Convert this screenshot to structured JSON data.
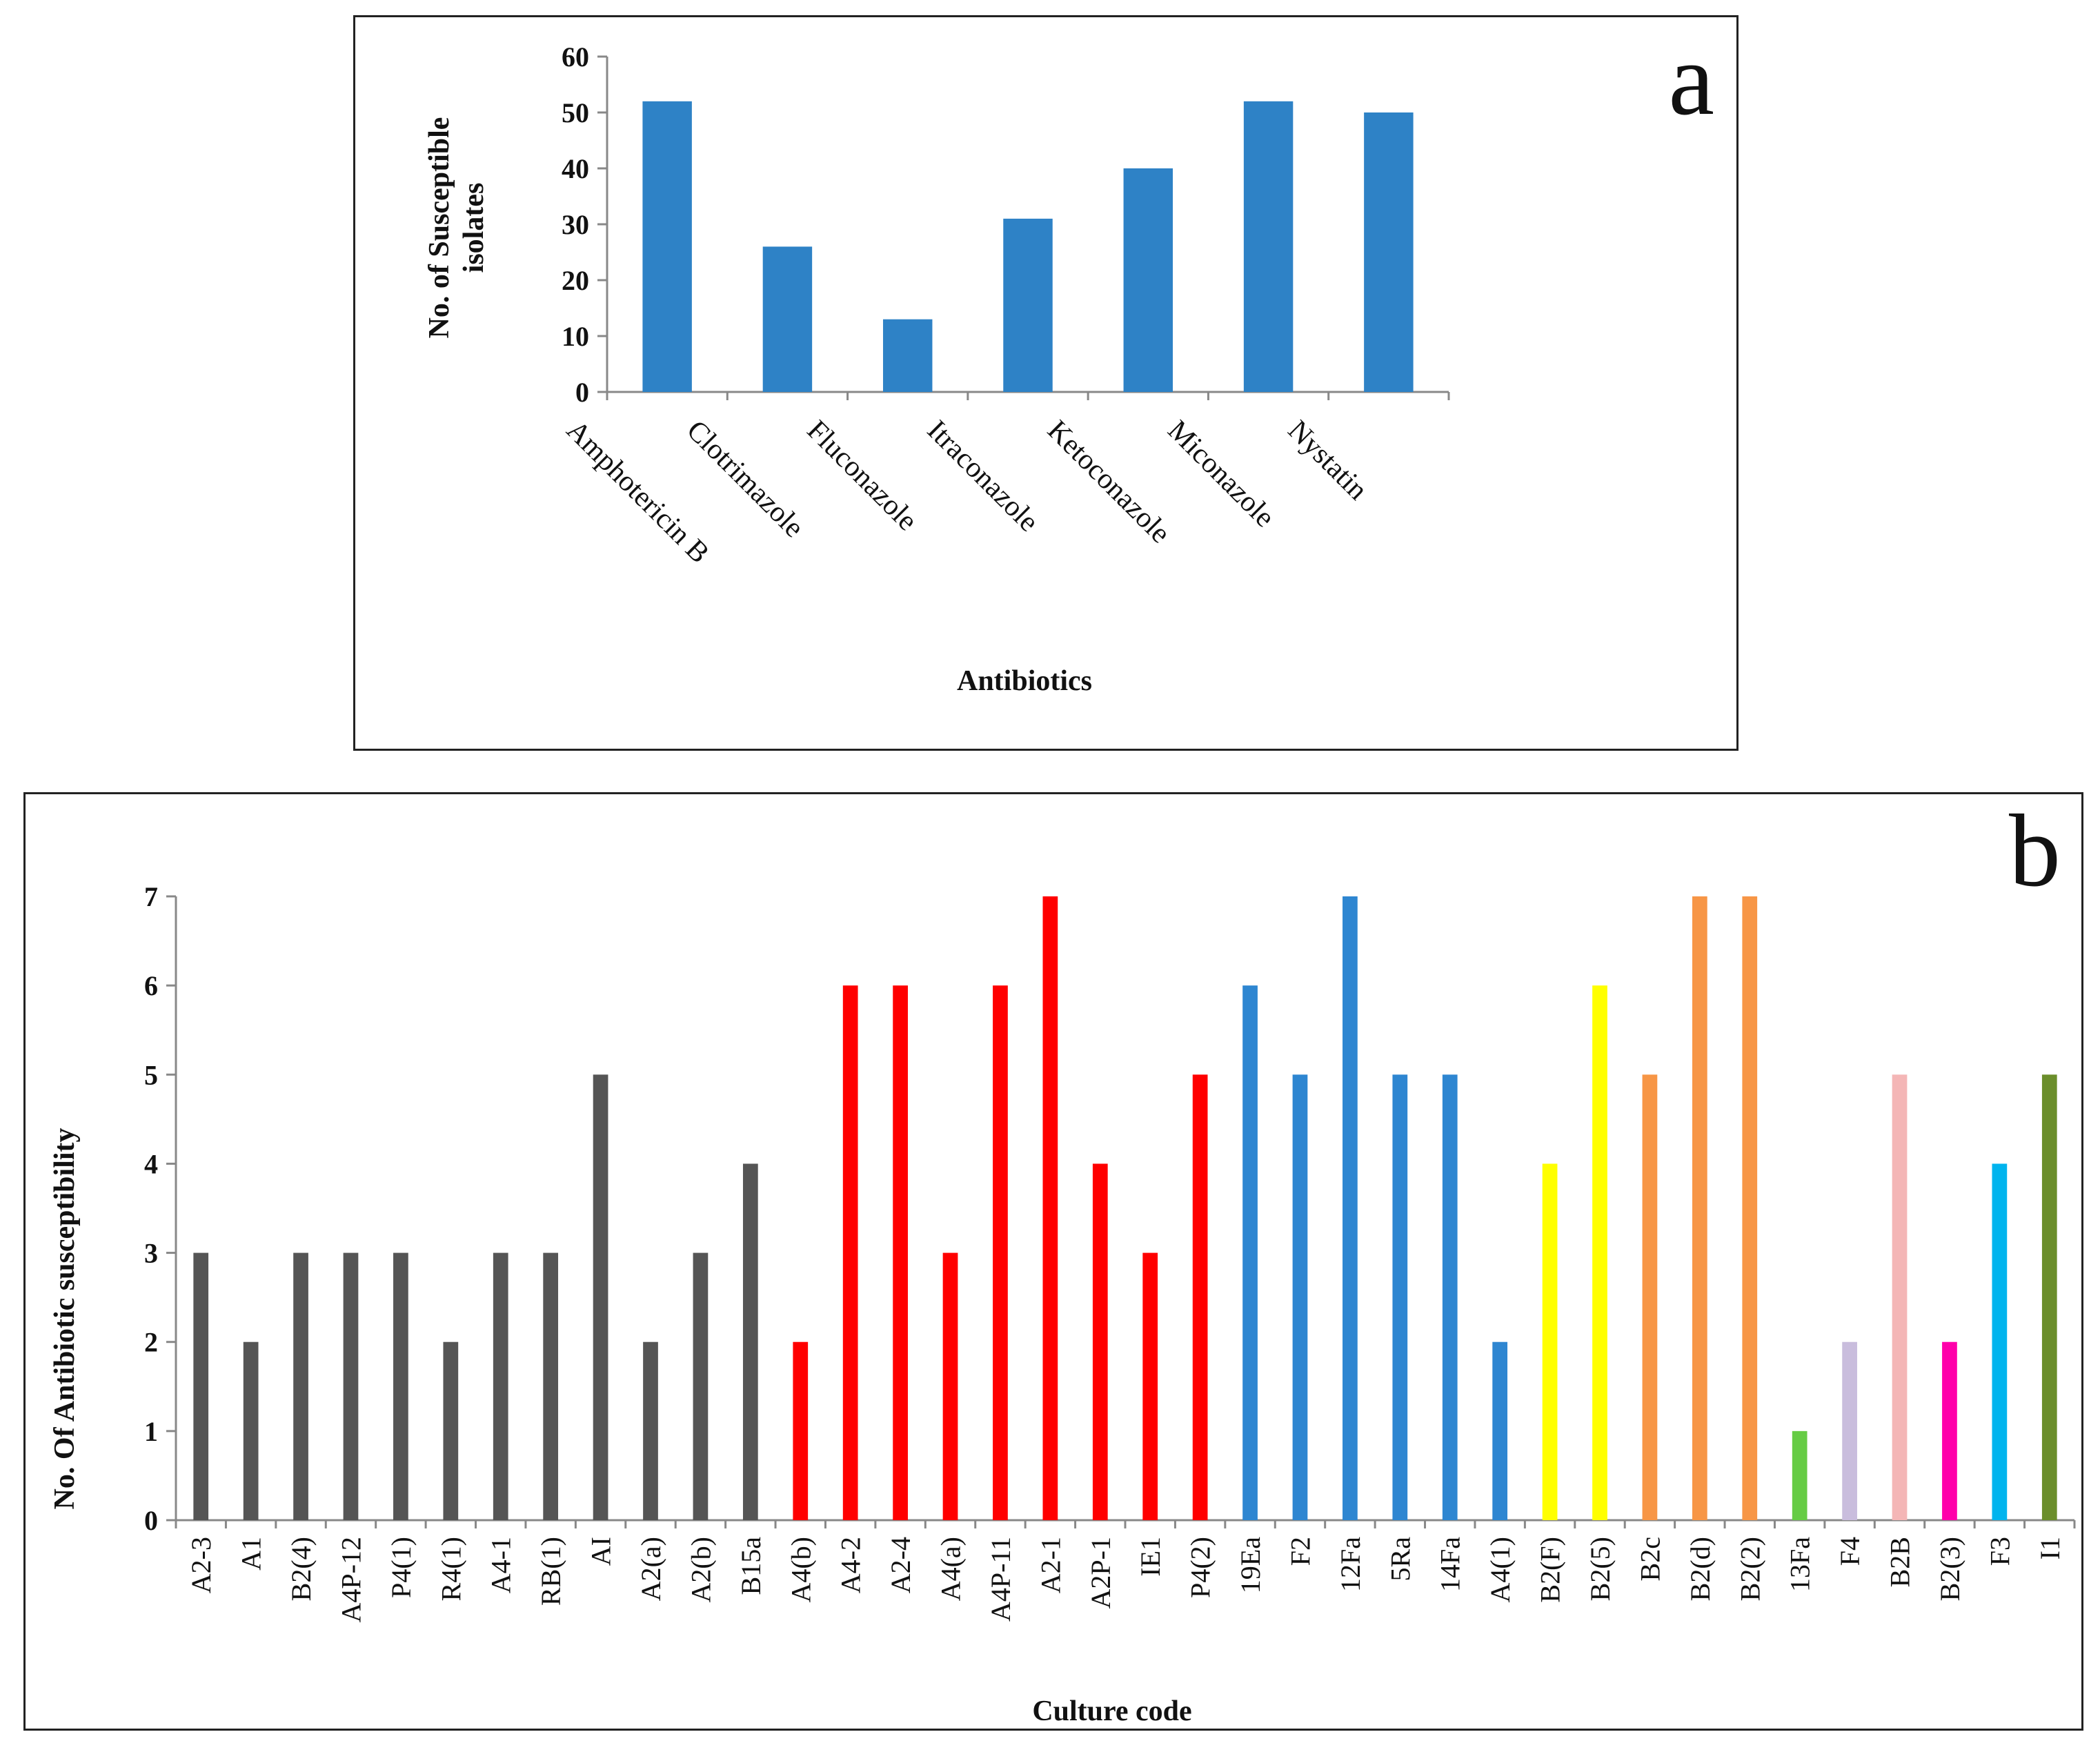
{
  "chart_data": [
    {
      "id": "a",
      "type": "bar",
      "panel_label": "a",
      "xlabel": "Antibiotics",
      "ylabel_lines": [
        "No. of Susceptible",
        "isolates"
      ],
      "ylim": [
        0,
        60
      ],
      "yticks": [
        0,
        10,
        20,
        30,
        40,
        50,
        60
      ],
      "categories": [
        "Amphotericin B",
        "Clotrimazole",
        "Fluconazole",
        "Itraconazole",
        "Ketoconazole",
        "Miconazole",
        "Nystatin"
      ],
      "values": [
        52,
        26,
        13,
        31,
        40,
        52,
        50
      ],
      "bar_color": "#2E82C6",
      "grid": false
    },
    {
      "id": "b",
      "type": "bar",
      "panel_label": "b",
      "xlabel": "Culture code",
      "ylabel": "No. Of Antibiotic susceptibility",
      "ylim": [
        0,
        7
      ],
      "yticks": [
        0,
        1,
        2,
        3,
        4,
        5,
        6,
        7
      ],
      "categories": [
        "A2-3",
        "A1",
        "B2(4)",
        "A4P-12",
        "P4(1)",
        "R4(1)",
        "A4-1",
        "RB(1)",
        "AI",
        "A2(a)",
        "A2(b)",
        "B15a",
        "A4(b)",
        "A4-2",
        "A2-4",
        "A4(a)",
        "A4P-11",
        "A2-1",
        "A2P-1",
        "IE1",
        "P4(2)",
        "19Ea",
        "F2",
        "12Fa",
        "5Ra",
        "14Fa",
        "A4(1)",
        "B2(F)",
        "B2(5)",
        "B2c",
        "B2(d)",
        "B2(2)",
        "13Fa",
        "F4",
        "B2B",
        "B2(3)",
        "F3",
        "I1"
      ],
      "values": [
        3,
        2,
        3,
        3,
        3,
        2,
        3,
        3,
        5,
        2,
        3,
        4,
        2,
        6,
        6,
        3,
        6,
        7,
        4,
        3,
        5,
        6,
        5,
        7,
        5,
        5,
        2,
        4,
        6,
        5,
        7,
        7,
        1,
        2,
        5,
        2,
        4,
        5
      ],
      "colors": [
        "#555555",
        "#555555",
        "#555555",
        "#555555",
        "#555555",
        "#555555",
        "#555555",
        "#555555",
        "#555555",
        "#555555",
        "#555555",
        "#555555",
        "#FF0000",
        "#FF0000",
        "#FF0000",
        "#FF0000",
        "#FF0000",
        "#FF0000",
        "#FF0000",
        "#FF0000",
        "#FF0000",
        "#2E86D1",
        "#2E86D1",
        "#2E86D1",
        "#2E86D1",
        "#2E86D1",
        "#2E86D1",
        "#FFFF00",
        "#FFFF00",
        "#F79646",
        "#F79646",
        "#F79646",
        "#66CC44",
        "#C9BDDD",
        "#F4B6B6",
        "#FF00AA",
        "#00B4EE",
        "#6B8E2B"
      ],
      "grid": false
    }
  ]
}
